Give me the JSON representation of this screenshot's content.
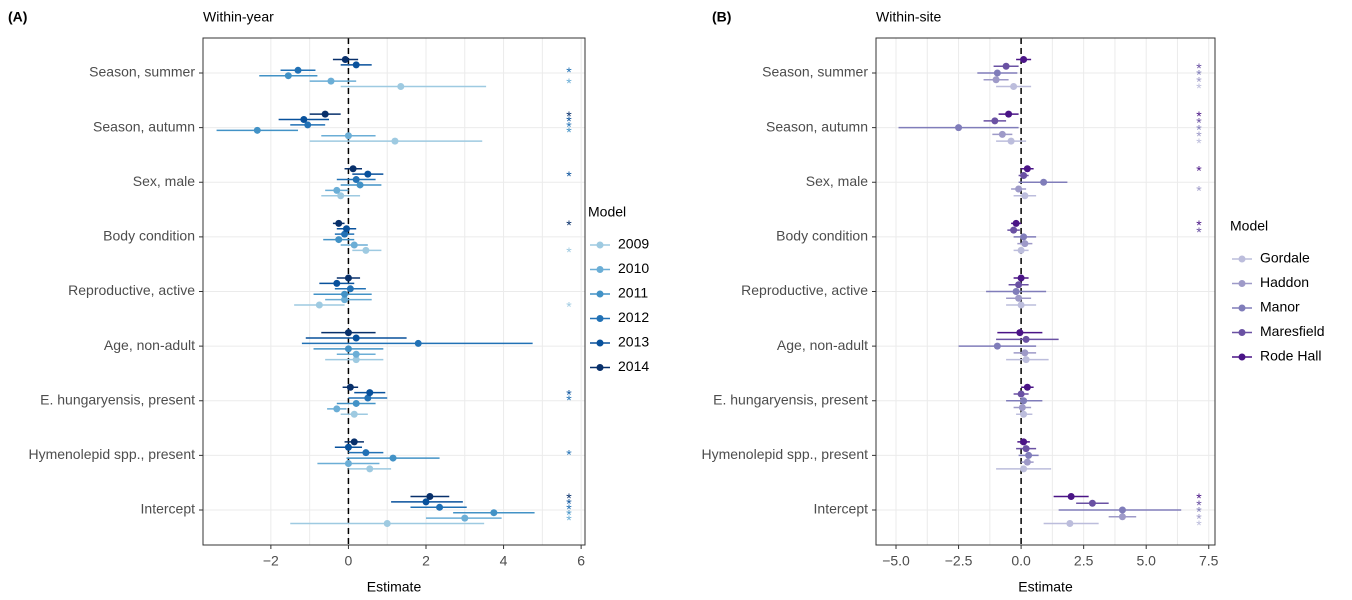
{
  "chart_data": [
    {
      "type": "forest",
      "tag": "(A)",
      "title": "Within-year",
      "x_label": "Estimate",
      "legend_title": "Model",
      "categories": [
        "Season, summer",
        "Season, autumn",
        "Sex, male",
        "Body condition",
        "Reproductive, active",
        "Age, non-adult",
        "E. hungaryensis, present",
        "Hymenolepid spp., present",
        "Intercept"
      ],
      "xlim": [
        -3.75,
        6.1
      ],
      "xticks": [
        {
          "value": -2,
          "label": "−2"
        },
        0,
        2,
        4,
        6
      ],
      "vline": 0,
      "grid": true,
      "series": [
        {
          "name": "2009",
          "color": "#9ecae1",
          "values": [
            1.35,
            1.2,
            -0.2,
            0.45,
            -0.75,
            0.2,
            0.15,
            0.55,
            1.0
          ],
          "lower": [
            -0.2,
            -1.0,
            -0.7,
            0.1,
            -1.4,
            -0.6,
            -0.2,
            0.0,
            -1.5
          ],
          "upper": [
            3.55,
            3.45,
            0.3,
            0.85,
            -0.1,
            0.9,
            0.5,
            1.1,
            3.5
          ],
          "stars": [
            null,
            null,
            null,
            "*",
            "*",
            null,
            null,
            null,
            null
          ]
        },
        {
          "name": "2010",
          "color": "#6baed6",
          "values": [
            -0.45,
            0.0,
            -0.3,
            0.15,
            -0.1,
            0.2,
            -0.3,
            0.0,
            3.0
          ],
          "lower": [
            -1.0,
            -0.7,
            -0.6,
            -0.2,
            -0.6,
            -0.3,
            -0.55,
            -0.8,
            2.0
          ],
          "upper": [
            0.2,
            0.7,
            0.0,
            0.5,
            0.6,
            0.7,
            -0.05,
            0.8,
            3.95
          ],
          "stars": [
            "*",
            null,
            null,
            null,
            null,
            null,
            null,
            null,
            "*"
          ]
        },
        {
          "name": "2011",
          "color": "#4292c6",
          "values": [
            -1.55,
            -2.35,
            0.3,
            -0.25,
            -0.1,
            0.0,
            0.2,
            1.15,
            3.75
          ],
          "lower": [
            -2.3,
            -3.4,
            -0.2,
            -0.65,
            -0.9,
            -0.9,
            -0.3,
            -0.05,
            2.7
          ],
          "upper": [
            -0.8,
            -1.3,
            0.85,
            0.15,
            0.6,
            0.9,
            0.7,
            2.35,
            4.8
          ],
          "stars": [
            null,
            "*",
            null,
            null,
            null,
            null,
            null,
            null,
            "*"
          ]
        },
        {
          "name": "2012",
          "color": "#2171b5",
          "values": [
            -1.3,
            -1.05,
            0.2,
            -0.1,
            0.05,
            1.8,
            0.5,
            0.45,
            2.35
          ],
          "lower": [
            -1.75,
            -1.5,
            -0.3,
            -0.35,
            -0.35,
            -1.2,
            0.0,
            0.0,
            1.6
          ],
          "upper": [
            -0.85,
            -0.6,
            0.7,
            0.15,
            0.45,
            4.75,
            1.0,
            0.9,
            3.05
          ],
          "stars": [
            "*",
            "*",
            null,
            null,
            null,
            null,
            "*",
            "*",
            "*"
          ]
        },
        {
          "name": "2013",
          "color": "#08519c",
          "values": [
            0.2,
            -1.15,
            0.5,
            -0.05,
            -0.3,
            0.2,
            0.55,
            0.0,
            2.0
          ],
          "lower": [
            -0.2,
            -1.8,
            0.1,
            -0.3,
            -0.75,
            -1.1,
            0.15,
            -0.35,
            1.1
          ],
          "upper": [
            0.6,
            -0.5,
            0.9,
            0.2,
            0.15,
            1.5,
            0.95,
            0.35,
            2.95
          ],
          "stars": [
            null,
            "*",
            "*",
            null,
            null,
            null,
            "*",
            null,
            "*"
          ]
        },
        {
          "name": "2014",
          "color": "#08306b",
          "values": [
            -0.08,
            -0.6,
            0.12,
            -0.25,
            0.0,
            0.0,
            0.05,
            0.15,
            2.1
          ],
          "lower": [
            -0.4,
            -1.0,
            -0.1,
            -0.4,
            -0.3,
            -0.7,
            -0.15,
            -0.1,
            1.6
          ],
          "upper": [
            0.25,
            -0.2,
            0.35,
            -0.1,
            0.3,
            0.7,
            0.25,
            0.4,
            2.6
          ],
          "stars": [
            null,
            "*",
            null,
            "*",
            null,
            null,
            null,
            null,
            "*"
          ]
        }
      ]
    },
    {
      "type": "forest",
      "tag": "(B)",
      "title": "Within-site",
      "x_label": "Estimate",
      "legend_title": "Model",
      "categories": [
        "Season, summer",
        "Season, autumn",
        "Sex, male",
        "Body condition",
        "Reproductive, active",
        "Age, non-adult",
        "E. hungaryensis, present",
        "Hymenolepid spp., present",
        "Intercept"
      ],
      "xlim": [
        -5.8,
        7.75
      ],
      "xticks": [
        {
          "value": -5,
          "label": "−5.0"
        },
        {
          "value": -2.5,
          "label": "−2.5"
        },
        {
          "value": 0,
          "label": "0.0"
        },
        {
          "value": 2.5,
          "label": "2.5"
        },
        {
          "value": 5,
          "label": "5.0"
        },
        {
          "value": 7.5,
          "label": "7.5"
        }
      ],
      "vline": 0,
      "grid": true,
      "series": [
        {
          "name": "Gordale",
          "color": "#bcbddc",
          "values": [
            -0.3,
            -0.4,
            0.15,
            0.0,
            0.0,
            0.2,
            0.1,
            0.1,
            1.95
          ],
          "lower": [
            -1.0,
            -1.0,
            -0.3,
            -0.3,
            -0.6,
            -0.6,
            -0.2,
            -1.0,
            0.9
          ],
          "upper": [
            0.4,
            0.2,
            0.6,
            0.3,
            0.6,
            1.1,
            0.45,
            1.2,
            3.1
          ],
          "stars": [
            "*",
            "*",
            null,
            null,
            null,
            null,
            null,
            null,
            "*"
          ]
        },
        {
          "name": "Haddon",
          "color": "#9e9ac8",
          "values": [
            -1.0,
            -0.75,
            -0.1,
            0.15,
            -0.1,
            0.15,
            0.05,
            0.25,
            4.05
          ],
          "lower": [
            -1.5,
            -1.15,
            -0.4,
            -0.15,
            -0.6,
            -0.3,
            -0.3,
            0.0,
            3.5
          ],
          "upper": [
            -0.5,
            -0.35,
            0.2,
            0.45,
            0.4,
            0.6,
            0.4,
            0.5,
            4.6
          ],
          "stars": [
            "*",
            "*",
            "*",
            null,
            null,
            null,
            null,
            null,
            "*"
          ]
        },
        {
          "name": "Manor",
          "color": "#807dba",
          "values": [
            -0.95,
            -2.5,
            0.9,
            0.1,
            -0.2,
            -0.95,
            0.1,
            0.3,
            4.05
          ],
          "lower": [
            -1.75,
            -4.9,
            -0.1,
            -0.3,
            -1.4,
            -2.5,
            -0.6,
            -0.1,
            1.5
          ],
          "upper": [
            -0.15,
            -0.1,
            1.85,
            0.6,
            1.0,
            0.6,
            0.85,
            0.7,
            6.4
          ],
          "stars": [
            "*",
            "*",
            null,
            null,
            null,
            null,
            null,
            null,
            "*"
          ]
        },
        {
          "name": "Maresfield",
          "color": "#6a51a3",
          "values": [
            -0.6,
            -1.05,
            0.1,
            -0.3,
            -0.1,
            0.2,
            0.0,
            0.2,
            2.85
          ],
          "lower": [
            -1.1,
            -1.5,
            -0.1,
            -0.55,
            -0.5,
            -1.0,
            -0.3,
            -0.2,
            2.2
          ],
          "upper": [
            -0.1,
            -0.6,
            0.3,
            -0.05,
            0.3,
            1.5,
            0.3,
            0.6,
            3.5
          ],
          "stars": [
            "*",
            "*",
            null,
            "*",
            null,
            null,
            null,
            null,
            "*"
          ]
        },
        {
          "name": "Rode Hall",
          "color": "#4a1486",
          "values": [
            0.1,
            -0.5,
            0.25,
            -0.2,
            0.0,
            -0.05,
            0.25,
            0.1,
            2.0
          ],
          "lower": [
            -0.2,
            -0.9,
            0.0,
            -0.4,
            -0.3,
            -0.95,
            0.0,
            -0.15,
            1.3
          ],
          "upper": [
            0.4,
            -0.1,
            0.5,
            0.0,
            0.3,
            0.85,
            0.5,
            0.35,
            2.7
          ],
          "stars": [
            null,
            "*",
            "*",
            "*",
            null,
            null,
            null,
            null,
            "*"
          ]
        }
      ]
    }
  ]
}
